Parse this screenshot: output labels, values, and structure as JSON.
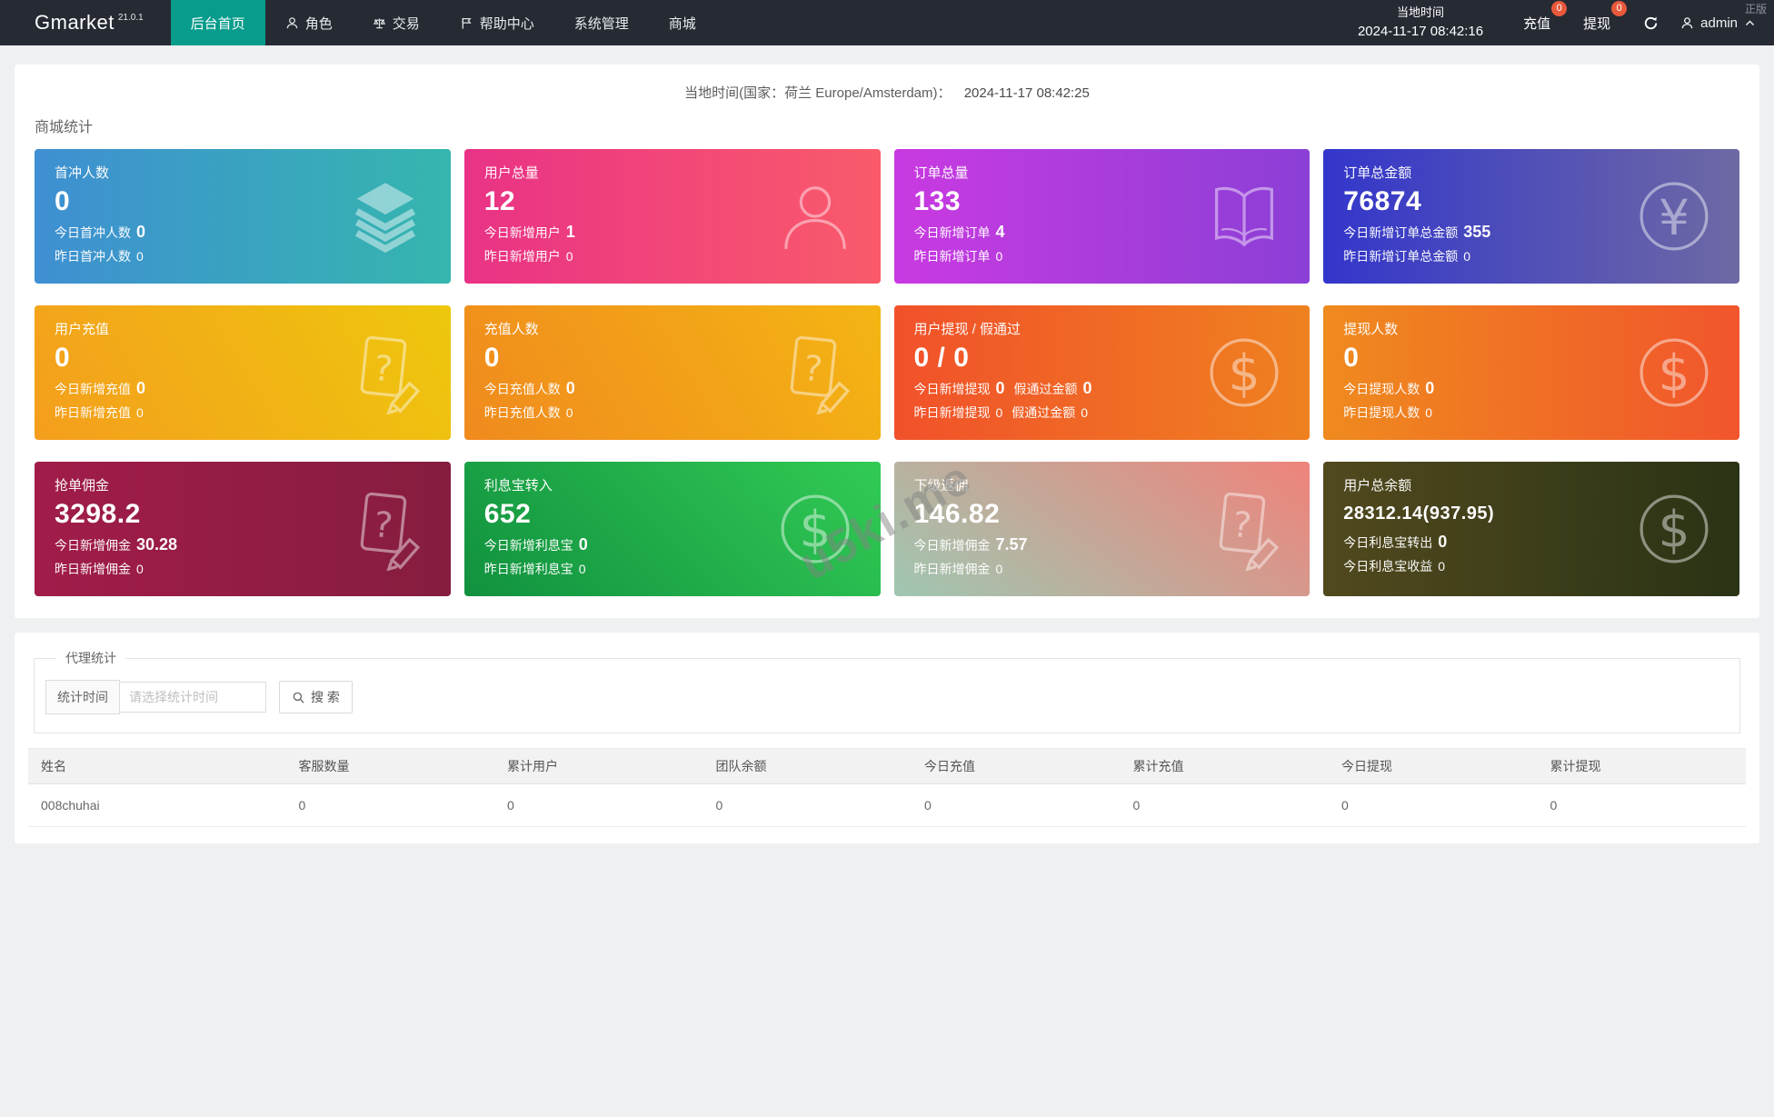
{
  "navbar": {
    "brand": "Gmarket",
    "brand_version": "21.0.1",
    "menu": [
      {
        "label": "后台首页",
        "icon": null,
        "active": true
      },
      {
        "label": "角色",
        "icon": "user-icon",
        "active": false
      },
      {
        "label": "交易",
        "icon": "scales-icon",
        "active": false
      },
      {
        "label": "帮助中心",
        "icon": "flag-icon",
        "active": false
      },
      {
        "label": "系统管理",
        "icon": null,
        "active": false
      },
      {
        "label": "商城",
        "icon": null,
        "active": false
      }
    ],
    "local_time_label": "当地时间",
    "local_time_value": "2024-11-17 08:42:16",
    "recharge_label": "充值",
    "recharge_badge": "0",
    "withdraw_label": "提现",
    "withdraw_badge": "0",
    "username": "admin",
    "corner_text": "正版"
  },
  "colors": {
    "navbar_bg": "#262a33",
    "active_tab": "#089c8c",
    "badge": "#e8593c",
    "page_bg": "#eff0f1"
  },
  "stats_panel": {
    "local_time_line": "当地时间(国家：荷兰 Europe/Amsterdam)：",
    "local_time_datetime": "2024-11-17 08:42:25",
    "section_title": "商城统计",
    "cards": [
      {
        "title": "首冲人数",
        "value": "0",
        "icon": "layers-icon",
        "gradient": {
          "angle": "90deg",
          "from": "#3f8fd2",
          "to": "#35b6ae"
        },
        "lines": [
          [
            {
              "label": "今日首冲人数",
              "value": "0"
            }
          ],
          [
            {
              "label": "昨日首冲人数",
              "value": "0"
            }
          ]
        ]
      },
      {
        "title": "用户总量",
        "value": "12",
        "icon": "user-icon",
        "gradient": {
          "angle": "90deg",
          "from": "#e93286",
          "to": "#fa5b6a"
        },
        "lines": [
          [
            {
              "label": "今日新增用户",
              "value": "1"
            }
          ],
          [
            {
              "label": "昨日新增用户",
              "value": "0"
            }
          ]
        ]
      },
      {
        "title": "订单总量",
        "value": "133",
        "icon": "book-icon",
        "gradient": {
          "angle": "90deg",
          "from": "#c93ae1",
          "to": "#8b3fd6"
        },
        "lines": [
          [
            {
              "label": "今日新增订单",
              "value": "4"
            }
          ],
          [
            {
              "label": "昨日新增订单",
              "value": "0"
            }
          ]
        ]
      },
      {
        "title": "订单总金额",
        "value": "76874",
        "icon": "yen-icon",
        "gradient": {
          "angle": "90deg",
          "from": "#3336cb",
          "to": "#6e69a4"
        },
        "lines": [
          [
            {
              "label": "今日新增订单总金额",
              "value": "355"
            }
          ],
          [
            {
              "label": "昨日新增订单总金额",
              "value": "0"
            }
          ]
        ]
      },
      {
        "title": "用户充值",
        "value": "0",
        "icon": "doc-question-icon",
        "gradient": {
          "angle": "60deg",
          "from": "#f49e1d",
          "to": "#eec70d"
        },
        "lines": [
          [
            {
              "label": "今日新增充值",
              "value": "0"
            }
          ],
          [
            {
              "label": "昨日新增充值",
              "value": "0"
            }
          ]
        ]
      },
      {
        "title": "充值人数",
        "value": "0",
        "icon": "doc-question-icon",
        "gradient": {
          "angle": "60deg",
          "from": "#f08a1e",
          "to": "#f4b513"
        },
        "lines": [
          [
            {
              "label": "今日充值人数",
              "value": "0"
            }
          ],
          [
            {
              "label": "昨日充值人数",
              "value": "0"
            }
          ]
        ]
      },
      {
        "title": "用户提现 / 假通过",
        "value": "0 / 0",
        "icon": "dollar-icon",
        "gradient": {
          "angle": "90deg",
          "from": "#f1512a",
          "to": "#ef8120"
        },
        "lines": [
          [
            {
              "label": "今日新增提现",
              "value": "0"
            },
            {
              "label": "假通过金额",
              "value": "0"
            }
          ],
          [
            {
              "label": "昨日新增提现",
              "value": "0"
            },
            {
              "label": "假通过金额",
              "value": "0"
            }
          ]
        ]
      },
      {
        "title": "提现人数",
        "value": "0",
        "icon": "dollar-icon",
        "gradient": {
          "angle": "90deg",
          "from": "#ef8a1e",
          "to": "#f1552c"
        },
        "lines": [
          [
            {
              "label": "今日提现人数",
              "value": "0"
            }
          ],
          [
            {
              "label": "昨日提现人数",
              "value": "0"
            }
          ]
        ]
      },
      {
        "title": "抢单佣金",
        "value": "3298.2",
        "icon": "doc-question-icon",
        "gradient": {
          "angle": "90deg",
          "from": "#a11c4a",
          "to": "#851d3f"
        },
        "lines": [
          [
            {
              "label": "今日新增佣金",
              "value": "30.28"
            }
          ],
          [
            {
              "label": "昨日新增佣金",
              "value": "0"
            }
          ]
        ]
      },
      {
        "title": "利息宝转入",
        "value": "652",
        "icon": "dollar-icon",
        "gradient": {
          "angle": "45deg",
          "from": "#11913f",
          "to": "#32cb55"
        },
        "lines": [
          [
            {
              "label": "今日新增利息宝",
              "value": "0"
            }
          ],
          [
            {
              "label": "昨日新增利息宝",
              "value": "0"
            }
          ]
        ]
      },
      {
        "title": "下级返佣",
        "value": "146.82",
        "icon": "doc-question-icon",
        "gradient": {
          "angle": "35deg",
          "from": "#9fc7b1",
          "to": "#ef837b"
        },
        "lines": [
          [
            {
              "label": "今日新增佣金",
              "value": "7.57"
            }
          ],
          [
            {
              "label": "昨日新增佣金",
              "value": "0"
            }
          ]
        ]
      },
      {
        "title": "用户总余额",
        "value": "28312.14(937.95)",
        "icon": "dollar-icon",
        "gradient": {
          "angle": "90deg",
          "from": "#51491e",
          "to": "#2a3315"
        },
        "lines": [
          [
            {
              "label": "今日利息宝转出",
              "value": "0"
            }
          ],
          [
            {
              "label": "今日利息宝收益",
              "value": "0"
            }
          ]
        ]
      }
    ]
  },
  "agent_panel": {
    "fieldset_legend": "代理统计",
    "time_label": "统计时间",
    "time_placeholder": "请选择统计时间",
    "search_label": "搜 索",
    "table": {
      "headers": [
        "姓名",
        "客服数量",
        "累计用户",
        "团队余额",
        "今日充值",
        "累计充值",
        "今日提现",
        "累计提现"
      ],
      "rows": [
        [
          "008chuhai",
          "0",
          "0",
          "0",
          "0",
          "0",
          "0",
          "0"
        ]
      ]
    }
  },
  "watermark": {
    "text": "u5ki.me"
  }
}
